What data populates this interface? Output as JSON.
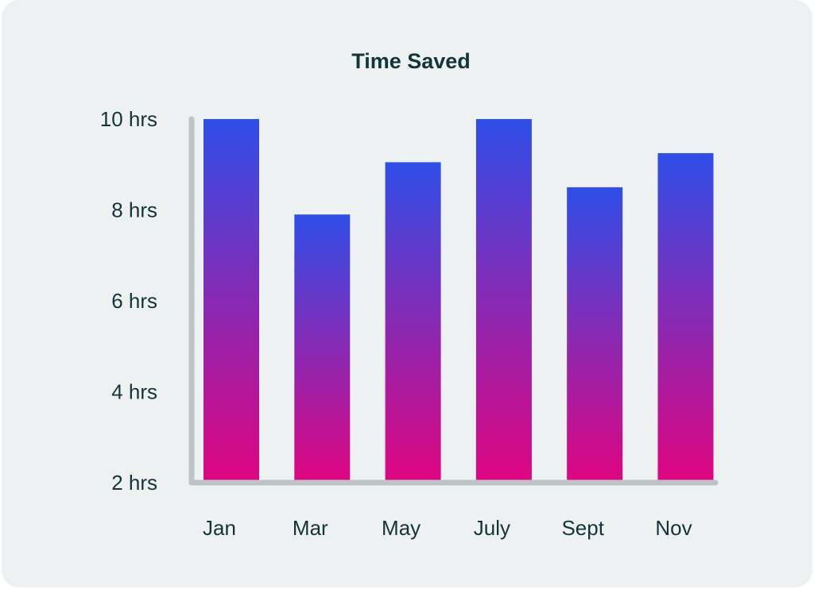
{
  "chart_data": {
    "type": "bar",
    "title": "Time Saved",
    "xlabel": "",
    "ylabel": "",
    "categories": [
      "Jan",
      "Mar",
      "May",
      "July",
      "Sept",
      "Nov"
    ],
    "values": [
      10,
      7.9,
      9.05,
      10,
      8.5,
      9.25
    ],
    "y_ticks": [
      "2 hrs",
      "4 hrs",
      "6 hrs",
      "8 hrs",
      "10 hrs"
    ],
    "y_tick_values": [
      2,
      4,
      6,
      8,
      10
    ],
    "ylim": [
      2,
      10
    ],
    "unit": "hrs",
    "grid": false,
    "colors": {
      "bar_top": "#2f4ee8",
      "bar_bottom": "#e0057f",
      "axis": "#bcc4c8",
      "text": "#13353a",
      "background": "#eef1f2"
    }
  }
}
